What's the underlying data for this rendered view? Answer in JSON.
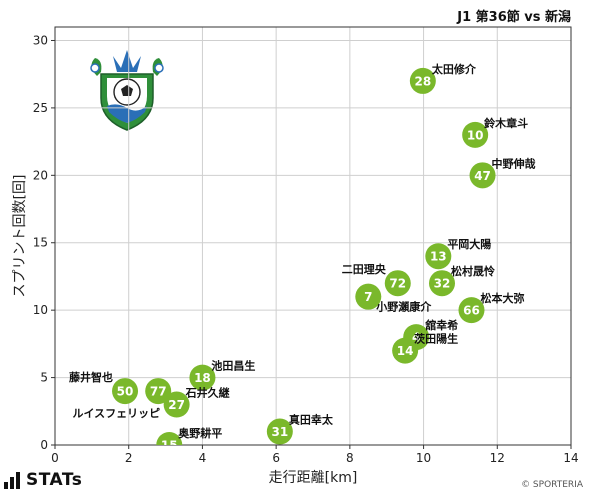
{
  "title": "J1 第36節 vs 新潟",
  "brand": "STATs",
  "copyright": "© SPORTERIA",
  "colors": {
    "point": "#7ab82b",
    "point_text": "#ffffff",
    "grid": "#cfcfcf",
    "crest_green": "#2f8f3a",
    "crest_blue": "#2a6fb7"
  },
  "chart_data": {
    "type": "scatter",
    "title": "J1 第36節 vs 新潟",
    "xlabel": "走行距離[km]",
    "ylabel": "スプリント回数[回]",
    "xlim": [
      0,
      14
    ],
    "ylim": [
      0,
      31
    ],
    "xticks": [
      0,
      2,
      4,
      6,
      8,
      10,
      12,
      14
    ],
    "yticks": [
      0,
      5,
      10,
      15,
      20,
      25,
      30
    ],
    "grid": true,
    "points": [
      {
        "number": "28",
        "name": "太田修介",
        "x": 9.98,
        "y": 27
      },
      {
        "number": "10",
        "name": "鈴木章斗",
        "x": 11.4,
        "y": 23
      },
      {
        "number": "47",
        "name": "中野伸哉",
        "x": 11.6,
        "y": 20
      },
      {
        "number": "13",
        "name": "平岡大陽",
        "x": 10.4,
        "y": 14
      },
      {
        "number": "72",
        "name": "二田理央",
        "x": 9.3,
        "y": 12
      },
      {
        "number": "32",
        "name": "松村晟怜",
        "x": 10.5,
        "y": 12
      },
      {
        "number": "7",
        "name": "小野瀬康介",
        "x": 8.5,
        "y": 11
      },
      {
        "number": "66",
        "name": "松本大弥",
        "x": 11.3,
        "y": 10
      },
      {
        "number": "4",
        "name": "舘幸希",
        "x": 9.8,
        "y": 8
      },
      {
        "number": "14",
        "name": "茨田陽生",
        "x": 9.5,
        "y": 7
      },
      {
        "number": "18",
        "name": "池田昌生",
        "x": 4.0,
        "y": 5
      },
      {
        "number": "50",
        "name": "藤井智也",
        "x": 1.9,
        "y": 4
      },
      {
        "number": "77",
        "name": "ルイスフェリッピ",
        "x": 2.8,
        "y": 4
      },
      {
        "number": "27",
        "name": "石井久継",
        "x": 3.3,
        "y": 3
      },
      {
        "number": "31",
        "name": "真田幸太",
        "x": 6.1,
        "y": 1
      },
      {
        "number": "15",
        "name": "奥野耕平",
        "x": 3.1,
        "y": 0
      }
    ]
  }
}
